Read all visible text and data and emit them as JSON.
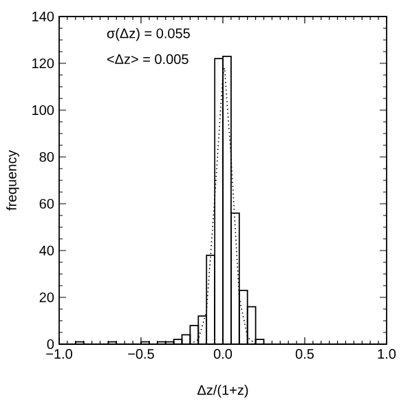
{
  "chart_data": {
    "type": "histogram",
    "xlabel": "Δz/(1+z)",
    "ylabel": "frequency",
    "annotations": [
      "σ(Δz) = 0.055",
      "<Δz> = 0.005"
    ],
    "xlim": [
      -1.0,
      1.0
    ],
    "ylim": [
      0,
      140
    ],
    "xticks": [
      {
        "value": -1.0,
        "label": "−1.0"
      },
      {
        "value": -0.5,
        "label": "−0.5"
      },
      {
        "value": 0.0,
        "label": "0.0"
      },
      {
        "value": 0.5,
        "label": "0.5"
      },
      {
        "value": 1.0,
        "label": "1.0"
      }
    ],
    "yticks": [
      0,
      20,
      40,
      60,
      80,
      100,
      120,
      140
    ],
    "color": "#000000",
    "bins": [
      -1.0,
      -0.95,
      -0.9,
      -0.85,
      -0.8,
      -0.75,
      -0.7,
      -0.65,
      -0.6,
      -0.55,
      -0.5,
      -0.45,
      -0.4,
      -0.35,
      -0.3,
      -0.25,
      -0.2,
      -0.15,
      -0.1,
      -0.05,
      0.0,
      0.05,
      0.1,
      0.15,
      0.2,
      0.25,
      0.3,
      0.35,
      0.4,
      0.45,
      0.5,
      0.55,
      0.6,
      0.65,
      0.7,
      0.75,
      0.8,
      0.85,
      0.9,
      0.95,
      1.0
    ],
    "values": [
      0,
      0,
      1,
      0,
      0,
      0,
      1,
      0,
      0,
      0,
      1,
      0,
      1,
      1,
      2,
      4,
      8,
      12,
      38,
      122,
      123,
      56,
      23,
      16,
      2,
      0,
      0,
      0,
      0,
      0,
      0,
      0,
      0,
      0,
      0,
      0,
      0,
      0,
      0,
      0
    ],
    "series": [
      {
        "type": "line",
        "color": "#000000",
        "line_style": "dotted",
        "x": [
          -0.2,
          -0.15,
          -0.1,
          -0.05,
          0.0,
          0.01,
          0.05,
          0.1,
          0.15,
          0.2
        ],
        "values": [
          0,
          2,
          14,
          62,
          115,
          118,
          80,
          20,
          3,
          0
        ]
      }
    ]
  }
}
